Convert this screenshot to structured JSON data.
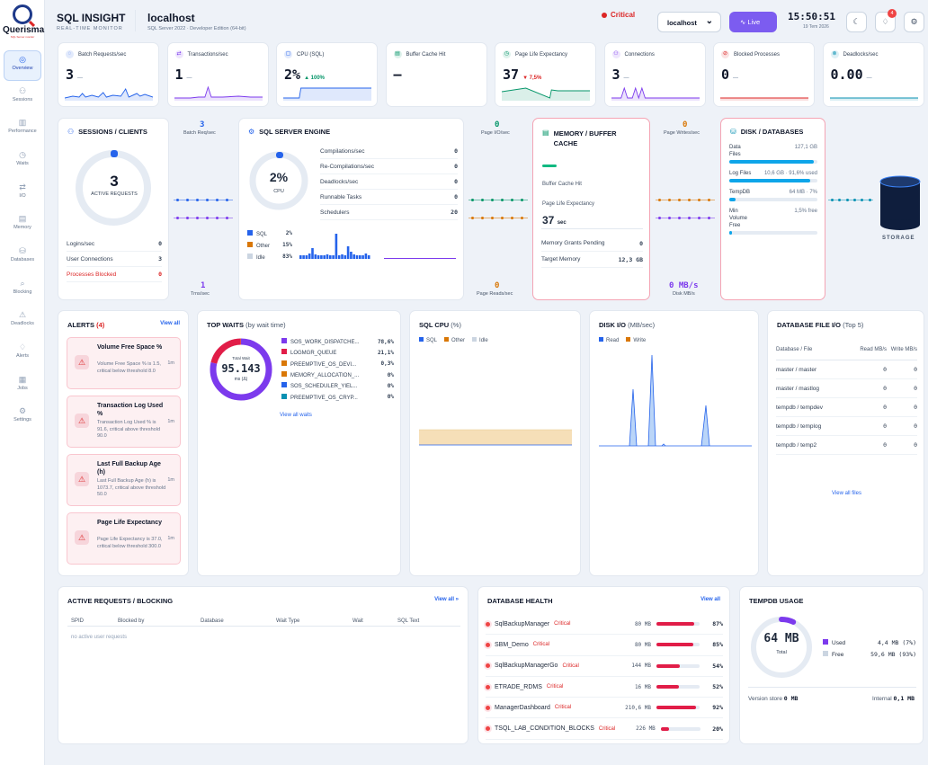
{
  "brand": {
    "name": "Querisma",
    "tagline": "SQL Server monitor"
  },
  "nav": [
    {
      "label": "Overview",
      "icon": "◎"
    },
    {
      "label": "Sessions",
      "icon": "⚇"
    },
    {
      "label": "Performance",
      "icon": "▥"
    },
    {
      "label": "Waits",
      "icon": "◷"
    },
    {
      "label": "I/O",
      "icon": "⇄"
    },
    {
      "label": "Memory",
      "icon": "▤"
    },
    {
      "label": "Databases",
      "icon": "⛁"
    },
    {
      "label": "Blocking",
      "icon": "⌕"
    },
    {
      "label": "Deadlocks",
      "icon": "⚠"
    },
    {
      "label": "Alerts",
      "icon": "♢"
    },
    {
      "label": "Jobs",
      "icon": "▦"
    },
    {
      "label": "Settings",
      "icon": "⚙"
    }
  ],
  "header": {
    "app_title": "SQL INSIGHT",
    "app_sub": "REAL-TIME MONITOR",
    "server": "localhost",
    "edition": "SQL Server 2022 · Developer Edition (64-bit)",
    "status": "Critical",
    "server_select": "localhost",
    "live_label": "Live",
    "time": "15:50:51",
    "date": "19 Tem 2026",
    "notif_count": "4"
  },
  "kpis": [
    {
      "title": "Batch Requests/sec",
      "value": "3",
      "suffix": "—",
      "color": "#2563eb",
      "icon": "◌"
    },
    {
      "title": "Transactions/sec",
      "value": "1",
      "suffix": "—",
      "color": "#7c3aed",
      "icon": "⇄"
    },
    {
      "title": "CPU (SQL)",
      "value": "2%",
      "suffix": "▲ 100%",
      "color": "#2563eb",
      "icon": "▢"
    },
    {
      "title": "Buffer Cache Hit",
      "value": "—",
      "suffix": "",
      "color": "#059669",
      "icon": "▤"
    },
    {
      "title": "Page Life Expectancy",
      "value": "37",
      "suffix": "▼ 7,5%",
      "color": "#059669",
      "icon": "◷"
    },
    {
      "title": "Connections",
      "value": "3",
      "suffix": "—",
      "color": "#7c3aed",
      "icon": "⚇"
    },
    {
      "title": "Blocked Processes",
      "value": "0",
      "suffix": "—",
      "color": "#dc2626",
      "icon": "⊘"
    },
    {
      "title": "Deadlocks/sec",
      "value": "0.00",
      "suffix": "—",
      "color": "#0891b2",
      "icon": "⊗"
    }
  ],
  "flow": {
    "batch_req": {
      "value": "3",
      "label": "Batch Req/sec"
    },
    "trans": {
      "value": "1",
      "label": "Trns/sec"
    },
    "page_io": {
      "value": "0",
      "label": "Page I/O/sec"
    },
    "page_reads": {
      "value": "0",
      "label": "Page Reads/sec"
    },
    "page_writes": {
      "value": "0",
      "label": "Page Writes/sec"
    },
    "disk_mb": {
      "value": "0 MB/s",
      "label": "Disk MB/s"
    },
    "storage_label": "STORAGE"
  },
  "sessions": {
    "title": "SESSIONS / CLIENTS",
    "active": "3",
    "active_label": "ACTIVE REQUESTS",
    "rows": [
      {
        "label": "Logins/sec",
        "value": "0"
      },
      {
        "label": "User Connections",
        "value": "3"
      },
      {
        "label": "Processes Blocked",
        "value": "0"
      }
    ]
  },
  "engine": {
    "title": "SQL SERVER ENGINE",
    "cpu": "2%",
    "cpu_label": "CPU",
    "rows": [
      {
        "label": "Compilations/sec",
        "value": "0"
      },
      {
        "label": "Re-Compilations/sec",
        "value": "0"
      },
      {
        "label": "Deadlocks/sec",
        "value": "0"
      },
      {
        "label": "Runnable Tasks",
        "value": "0"
      },
      {
        "label": "Schedulers",
        "value": "20"
      }
    ],
    "legend": [
      {
        "label": "SQL",
        "value": "2%",
        "color": "#2563eb"
      },
      {
        "label": "Other",
        "value": "15%",
        "color": "#d97706"
      },
      {
        "label": "Idle",
        "value": "83%",
        "color": "#cbd5e1"
      }
    ]
  },
  "memory": {
    "title": "MEMORY / BUFFER CACHE",
    "bch_label": "Buffer Cache Hit",
    "ple_label": "Page Life Expectancy",
    "ple_value": "37",
    "ple_unit": "sec",
    "rows": [
      {
        "label": "Memory Grants Pending",
        "value": "0"
      },
      {
        "label": "Target Memory",
        "value": "12,3 GB"
      }
    ]
  },
  "disk": {
    "title": "DISK / DATABASES",
    "items": [
      {
        "label": "Data Files",
        "value": "127,1 GB",
        "pct": 0.96
      },
      {
        "label": "Log Files",
        "value": "10,6 GB · 91,6% used",
        "pct": 0.92
      },
      {
        "label": "TempDB",
        "value": "64 MB · 7%",
        "pct": 0.07
      },
      {
        "label": "Min Volume Free",
        "value": "1,5% free",
        "pct": 0.015
      }
    ]
  },
  "alerts": {
    "title": "ALERTS",
    "count": "(4)",
    "view_all": "View all",
    "items": [
      {
        "title": "Volume Free Space %",
        "desc": "Volume Free Space % is 1.5, critical below threshold 8.0",
        "time": "1m"
      },
      {
        "title": "Transaction Log Used %",
        "desc": "Transaction Log Used % is 91.6, critical above threshold 90.0",
        "time": "1m"
      },
      {
        "title": "Last Full Backup Age (h)",
        "desc": "Last Full Backup Age (h) is 1073.7, critical above threshold 50.0",
        "time": "1m"
      },
      {
        "title": "Page Life Expectancy",
        "desc": "Page Life Expectancy is 37.0, critical below threshold 300.0",
        "time": "1m"
      }
    ]
  },
  "waits": {
    "title": "TOP WAITS",
    "subtitle": "(by wait time)",
    "total_label": "Total Wait",
    "total": "95.143",
    "unit": "ms (Δ)",
    "view_all": "View all waits",
    "items": [
      {
        "name": "SOS_WORK_DISPATCHE...",
        "pct": "78,6%",
        "color": "#7c3aed",
        "v": 78.6
      },
      {
        "name": "LOGMGR_QUEUE",
        "pct": "21,1%",
        "color": "#e11d48",
        "v": 21.1
      },
      {
        "name": "PREEMPTIVE_OS_DEVI...",
        "pct": "0,3%",
        "color": "#d97706",
        "v": 0.3
      },
      {
        "name": "MEMORY_ALLOCATION_...",
        "pct": "0%",
        "color": "#d97706",
        "v": 0
      },
      {
        "name": "SOS_SCHEDULER_YIEL...",
        "pct": "0%",
        "color": "#2563eb",
        "v": 0
      },
      {
        "name": "PREEMPTIVE_OS_CRYP...",
        "pct": "0%",
        "color": "#0891b2",
        "v": 0
      }
    ]
  },
  "sqlcpu": {
    "title": "SQL CPU",
    "unit": "(%)",
    "legend": [
      "SQL",
      "Other",
      "Idle"
    ],
    "colors": [
      "#2563eb",
      "#d97706",
      "#cbd5e1"
    ]
  },
  "diskio": {
    "title": "DISK I/O",
    "unit": "(MB/sec)",
    "legend": [
      "Read",
      "Write"
    ],
    "colors": [
      "#2563eb",
      "#d97706"
    ]
  },
  "dbfileio": {
    "title": "DATABASE FILE I/O",
    "sub": "(Top 5)",
    "headers": [
      "Database / File",
      "Read MB/s",
      "Write MB/s"
    ],
    "rows": [
      [
        "master / master",
        "0",
        "0"
      ],
      [
        "master / mastlog",
        "0",
        "0"
      ],
      [
        "tempdb / tempdev",
        "0",
        "0"
      ],
      [
        "tempdb / templog",
        "0",
        "0"
      ],
      [
        "tempdb / temp2",
        "0",
        "0"
      ]
    ],
    "view_all": "View all files"
  },
  "active": {
    "title": "ACTIVE REQUESTS / BLOCKING",
    "view_all": "View all »",
    "headers": [
      "SPID",
      "Blocked by",
      "Database",
      "Wait Type",
      "Wait",
      "SQL Text"
    ],
    "empty": "no active user requests"
  },
  "dbhealth": {
    "title": "DATABASE HEALTH",
    "view_all": "View all",
    "items": [
      {
        "name": "SqlBackupManager",
        "status": "Critical",
        "size": "80 MB",
        "pct": "87%",
        "v": 87
      },
      {
        "name": "SBM_Demo",
        "status": "Critical",
        "size": "80 MB",
        "pct": "85%",
        "v": 85
      },
      {
        "name": "SqlBackupManagerGo",
        "status": "Critical",
        "size": "144 MB",
        "pct": "54%",
        "v": 54
      },
      {
        "name": "ETRADE_RDMS",
        "status": "Critical",
        "size": "16 MB",
        "pct": "52%",
        "v": 52
      },
      {
        "name": "ManagerDashboard",
        "status": "Critical",
        "size": "210,6 MB",
        "pct": "92%",
        "v": 92
      },
      {
        "name": "TSQL_LAB_CONDITION_BLOCKS",
        "status": "Critical",
        "size": "226 MB",
        "pct": "20%",
        "v": 20
      }
    ]
  },
  "tempdb": {
    "title": "TEMPDB USAGE",
    "total": "64 MB",
    "total_label": "Total",
    "used_label": "Used",
    "used": "4,4 MB (7%)",
    "free_label": "Free",
    "free": "59,6 MB (93%)",
    "used_pct": 0.07,
    "vs_label": "Version store",
    "vs": "0 MB",
    "int_label": "Internal",
    "int": "0,1 MB"
  }
}
